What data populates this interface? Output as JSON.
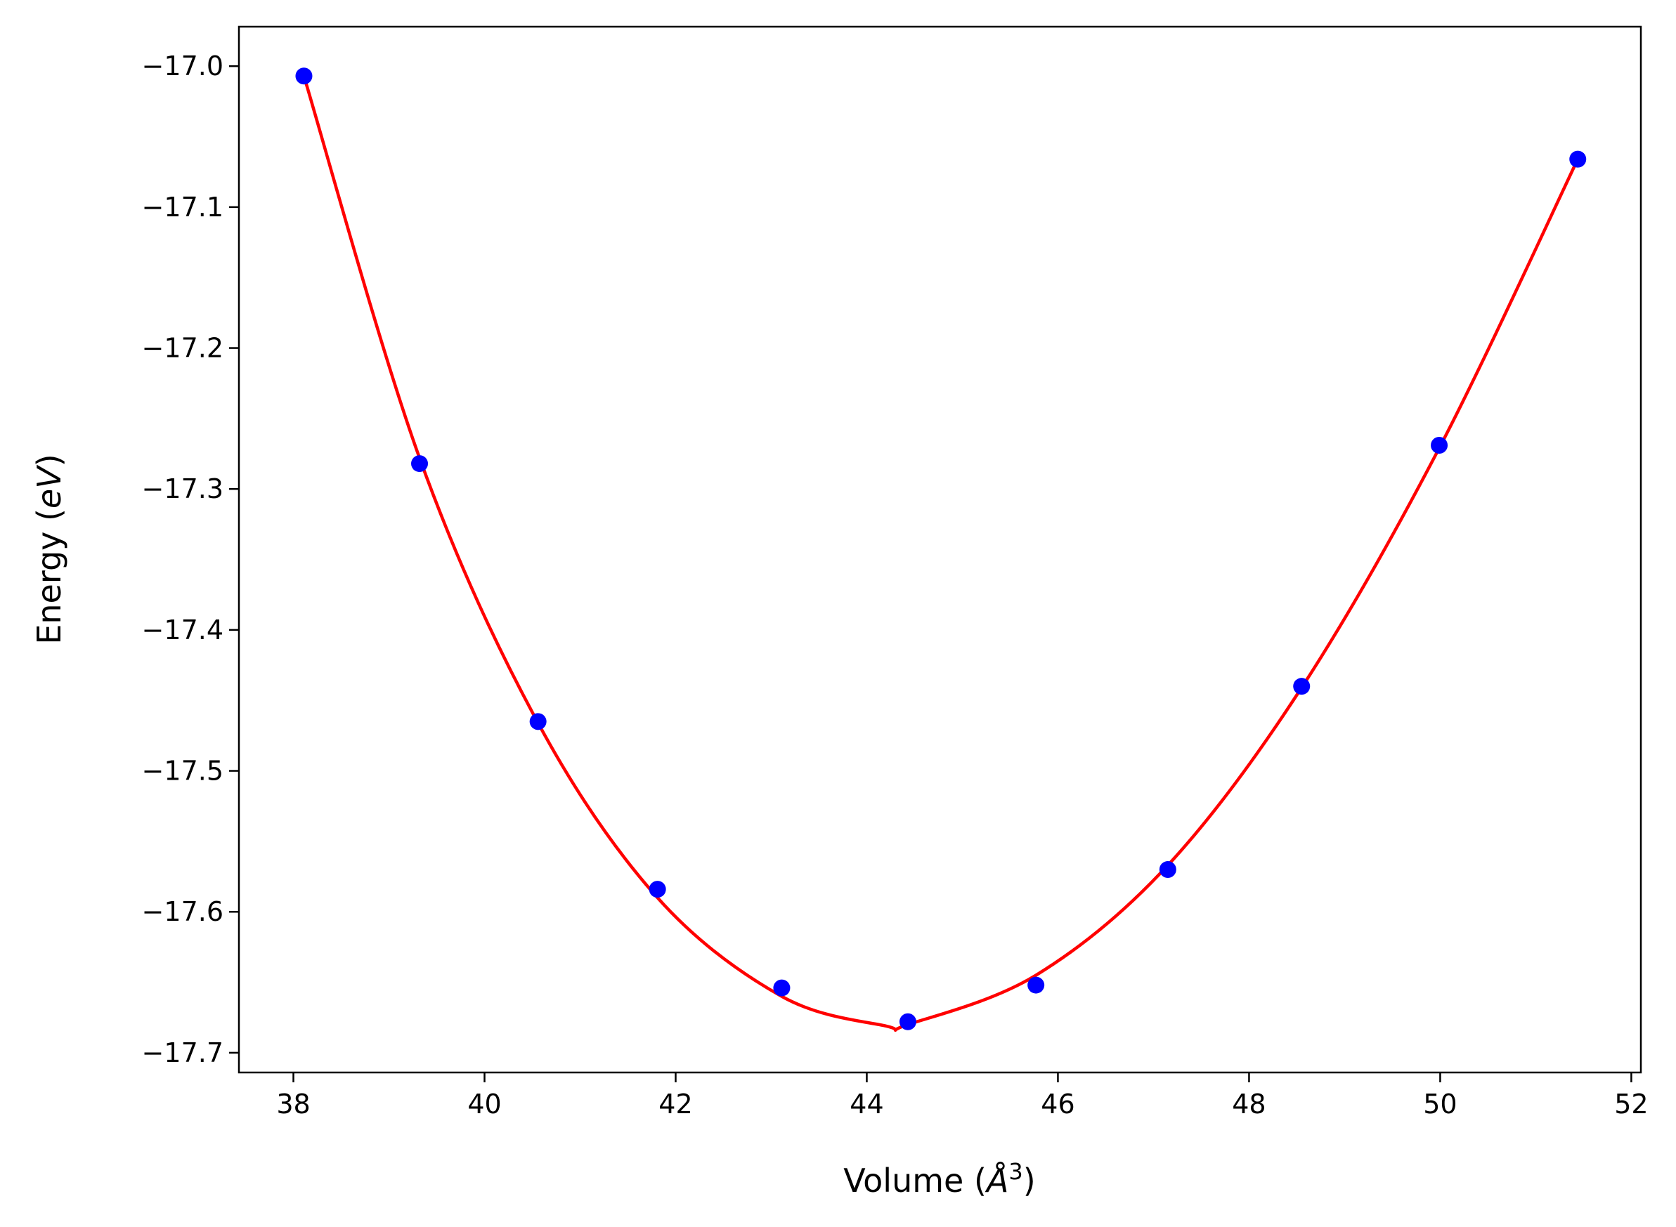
{
  "chart_data": {
    "type": "scatter",
    "xlabel": "Volume",
    "xlabel_unit_symbol": "Å",
    "xlabel_unit_power": "3",
    "ylabel": "Energy",
    "ylabel_unit": "eV",
    "xlim": [
      37.43,
      52.1
    ],
    "ylim": [
      -17.714,
      -16.972
    ],
    "x_ticks": [
      38,
      40,
      42,
      44,
      46,
      48,
      50,
      52
    ],
    "y_ticks": [
      -17.0,
      -17.1,
      -17.2,
      -17.3,
      -17.4,
      -17.5,
      -17.6,
      -17.7
    ],
    "x_tick_labels": [
      "38",
      "40",
      "42",
      "44",
      "46",
      "48",
      "50",
      "52"
    ],
    "y_tick_labels": [
      "−17.0",
      "−17.1",
      "−17.2",
      "−17.3",
      "−17.4",
      "−17.5",
      "−17.6",
      "−17.7"
    ],
    "grid": false,
    "series": [
      {
        "kind": "points",
        "color": "#0000ff",
        "points": [
          {
            "x": 38.11,
            "y": -17.007
          },
          {
            "x": 39.32,
            "y": -17.282
          },
          {
            "x": 40.56,
            "y": -17.465
          },
          {
            "x": 41.81,
            "y": -17.584
          },
          {
            "x": 43.11,
            "y": -17.654
          },
          {
            "x": 44.43,
            "y": -17.678
          },
          {
            "x": 45.77,
            "y": -17.652
          },
          {
            "x": 47.15,
            "y": -17.57
          },
          {
            "x": 48.55,
            "y": -17.44
          },
          {
            "x": 49.99,
            "y": -17.269
          },
          {
            "x": 51.44,
            "y": -17.066
          }
        ]
      },
      {
        "kind": "fit-curve",
        "color": "#ff0000",
        "points": [
          {
            "x": 38.11,
            "y": -17.007
          },
          {
            "x": 39.32,
            "y": -17.278
          },
          {
            "x": 40.56,
            "y": -17.466
          },
          {
            "x": 41.81,
            "y": -17.59
          },
          {
            "x": 43.11,
            "y": -17.66
          },
          {
            "x": 44.2,
            "y": -17.681
          },
          {
            "x": 44.43,
            "y": -17.68
          },
          {
            "x": 45.77,
            "y": -17.645
          },
          {
            "x": 47.15,
            "y": -17.567
          },
          {
            "x": 48.55,
            "y": -17.441
          },
          {
            "x": 49.99,
            "y": -17.271
          },
          {
            "x": 51.44,
            "y": -17.066
          }
        ]
      }
    ]
  }
}
